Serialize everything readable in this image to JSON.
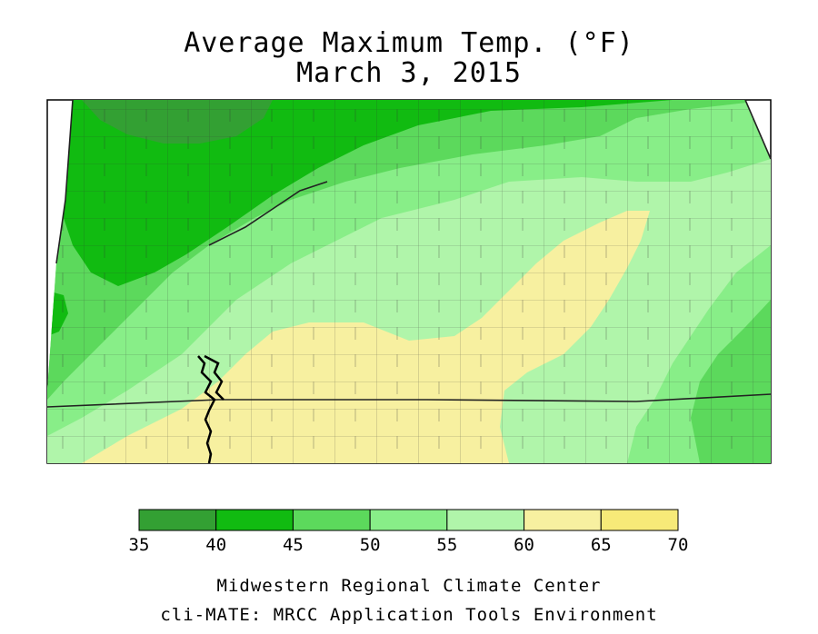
{
  "title": {
    "line1": "Average Maximum Temp. (°F)",
    "line2": "March 3, 2015"
  },
  "legend": {
    "ticks": [
      "35",
      "40",
      "45",
      "50",
      "55",
      "60",
      "65",
      "70"
    ],
    "colors": [
      "#33a033",
      "#11bb11",
      "#5cd95c",
      "#88ee88",
      "#b0f5aa",
      "#f7f0a0",
      "#f7ea78"
    ]
  },
  "map": {
    "palette": {
      "c35_40": "#33a033",
      "c40_45": "#11bb11",
      "c45_50": "#5cd95c",
      "c50_55": "#88ee88",
      "c55_60": "#b0f5aa",
      "c60_65": "#f7f0a0",
      "boundary": "#222222",
      "river": "#000000"
    }
  },
  "credits": {
    "line1": "Midwestern Regional Climate Center",
    "line2": "cli-MATE: MRCC Application Tools Environment"
  }
}
